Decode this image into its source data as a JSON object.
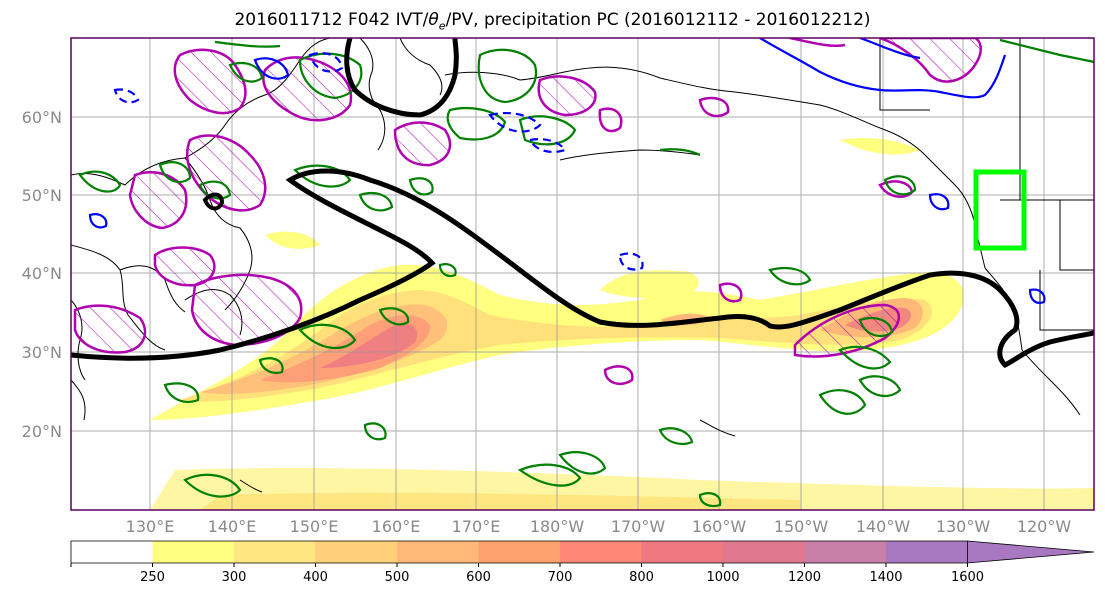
{
  "title": {
    "prefix": "2016011712 F042 IVT/",
    "theta": "θ",
    "theta_sub": "e",
    "suffix": "/PV, precipitation PC (2016012112 - 2016012212)"
  },
  "lat_labels": [
    "60°N",
    "50°N",
    "40°N",
    "30°N",
    "20°N"
  ],
  "lon_labels": [
    "130°E",
    "140°E",
    "150°E",
    "160°E",
    "170°E",
    "180°W",
    "170°W",
    "160°W",
    "150°W",
    "140°W",
    "130°W",
    "120°W"
  ],
  "colorbar": {
    "levels": [
      "250",
      "300",
      "400",
      "500",
      "600",
      "700",
      "800",
      "1000",
      "1200",
      "1400",
      "1600"
    ],
    "colors": [
      "#ffffff",
      "#ffff80",
      "#ffe680",
      "#ffcf7a",
      "#ffb878",
      "#ffa070",
      "#ff8878",
      "#f07880",
      "#e07890",
      "#c880a8",
      "#a878c0"
    ]
  },
  "colors": {
    "jet_contour": "#000000",
    "pv_positive": "#b000b0",
    "theta_e_green": "#008000",
    "theta_e_blue": "#0000ff",
    "target_box": "#00ff00",
    "coastline": "#000000"
  }
}
